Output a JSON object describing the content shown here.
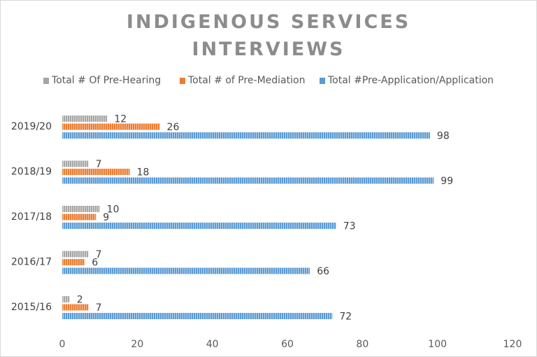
{
  "chart_data": {
    "type": "bar",
    "orientation": "horizontal",
    "title": "INDIGENOUS SERVICES INTERVIEWS",
    "title_lines": [
      "INDIGENOUS  SERVICES",
      "INTERVIEWS"
    ],
    "categories": [
      "2015/16",
      "2016/17",
      "2017/18",
      "2018/19",
      "2019/20"
    ],
    "series": [
      {
        "name": "Total # Of Pre-Hearing",
        "color": "#a5a5a5",
        "values": [
          2,
          7,
          10,
          7,
          12
        ]
      },
      {
        "name": "Total # of Pre-Mediation",
        "color": "#ed7d31",
        "values": [
          7,
          6,
          9,
          18,
          26
        ]
      },
      {
        "name": "Total #Pre-Application/Application",
        "color": "#5b9bd5",
        "values": [
          72,
          66,
          73,
          99,
          98
        ]
      }
    ],
    "xlim": [
      0,
      120
    ],
    "xticks": [
      0,
      20,
      40,
      60,
      80,
      100,
      120
    ],
    "xlabel": "",
    "ylabel": "",
    "legend_position": "top",
    "data_labels": true,
    "gridlines": false
  }
}
